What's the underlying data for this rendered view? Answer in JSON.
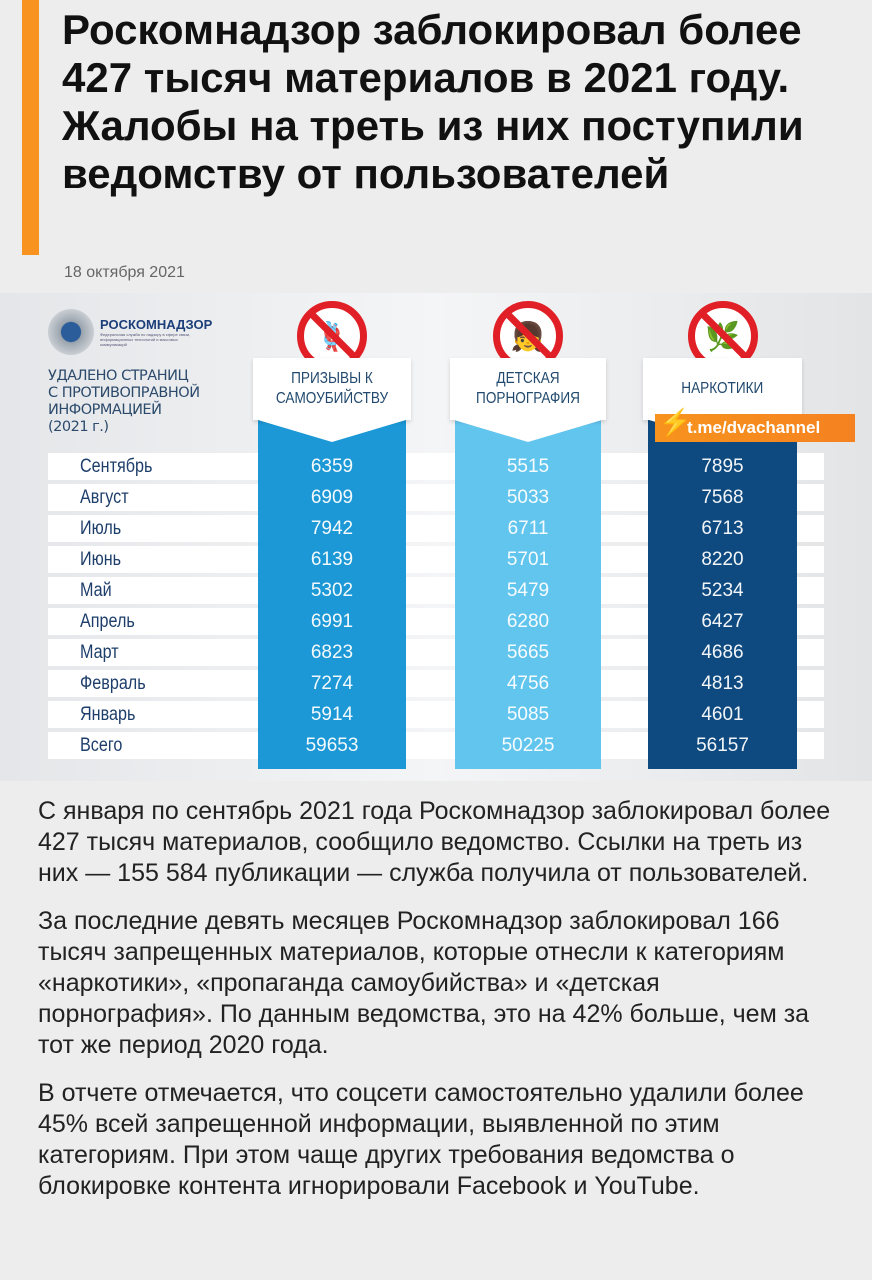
{
  "article": {
    "title": "Роскомнадзор заблокировал более 427 тысяч материалов в 2021 году. Жалобы на треть из них поступили ведомству от пользователей",
    "date": "18 октября 2021",
    "paragraphs": [
      "С января по сентябрь 2021 года Роскомнадзор заблокировал более 427 тысяч материалов, сообщило ведомство. Ссылки на треть из них — 155 584 публикации — служба получила от пользователей.",
      "За последние девять месяцев Роскомнадзор заблокировал 166 тысяч запрещенных материалов, которые отнесли к категориям «наркотики», «пропаганда самоубийства» и «детская порнография». По данным ведомства, это на 42% больше, чем за тот же период 2020 года.",
      "В отчете отмечается, что соцсети самостоятельно удалили более 45% всей запрещенной информации, выявленной по этим категориям. При этом чаще других требования ведомства о блокировке контента игнорировали Facebook и YouTube."
    ]
  },
  "infographic": {
    "logo_name": "РОСКОМНАДЗОР",
    "logo_sub": "Федеральная служба по надзору в сфере связи, информационных технологий и массовых коммуникаций",
    "subtitle": [
      "УДАЛЕНО СТРАНИЦ",
      "С ПРОТИВОПРАВНОЙ",
      "ИНФОРМАЦИЕЙ",
      "(2021 г.)"
    ],
    "watermark": "t.me/dvachannel",
    "columns": [
      "ПРИЗЫВЫ К САМОУБИЙСТВУ",
      "ДЕТСКАЯ ПОРНОГРАФИЯ",
      "НАРКОТИКИ"
    ],
    "colors": [
      "#1b98d5",
      "#62c5ee",
      "#0e4a80"
    ],
    "rows": [
      {
        "month": "Сентябрь",
        "values": [
          "6359",
          "5515",
          "7895"
        ]
      },
      {
        "month": "Август",
        "values": [
          "6909",
          "5033",
          "7568"
        ]
      },
      {
        "month": "Июль",
        "values": [
          "7942",
          "6711",
          "6713"
        ]
      },
      {
        "month": "Июнь",
        "values": [
          "6139",
          "5701",
          "8220"
        ]
      },
      {
        "month": "Май",
        "values": [
          "5302",
          "5479",
          "5234"
        ]
      },
      {
        "month": "Апрель",
        "values": [
          "6991",
          "6280",
          "6427"
        ]
      },
      {
        "month": "Март",
        "values": [
          "6823",
          "5665",
          "4686"
        ]
      },
      {
        "month": "Февраль",
        "values": [
          "7274",
          "4756",
          "4813"
        ]
      },
      {
        "month": "Январь",
        "values": [
          "5914",
          "5085",
          "4601"
        ]
      },
      {
        "month": "Всего",
        "values": [
          "59653",
          "50225",
          "56157"
        ]
      }
    ]
  }
}
